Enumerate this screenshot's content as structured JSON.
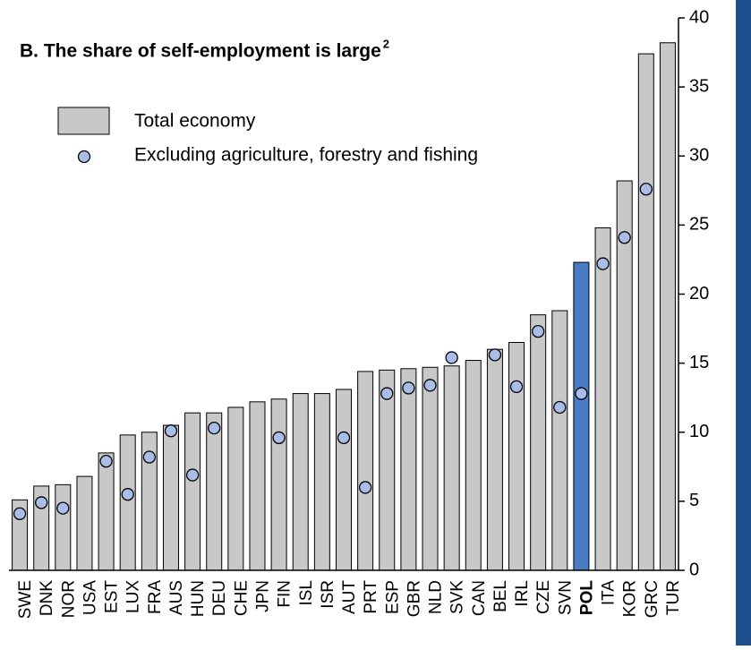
{
  "chart_data": {
    "type": "bar",
    "title": "B. The share of self-employment is large",
    "title_note": "2",
    "categories": [
      "SWE",
      "DNK",
      "NOR",
      "USA",
      "EST",
      "LUX",
      "FRA",
      "AUS",
      "HUN",
      "DEU",
      "CHE",
      "JPN",
      "FIN",
      "ISL",
      "ISR",
      "AUT",
      "PRT",
      "ESP",
      "GBR",
      "NLD",
      "SVK",
      "CAN",
      "BEL",
      "IRL",
      "CZE",
      "SVN",
      "POL",
      "ITA",
      "KOR",
      "GRC",
      "TUR"
    ],
    "series": [
      {
        "name": "Total economy",
        "type": "bar",
        "color": "#c8c8c8",
        "highlight": {
          "category": "POL",
          "color": "#4a7cc4"
        },
        "values": [
          5.1,
          6.1,
          6.2,
          6.8,
          8.5,
          9.8,
          10.0,
          10.5,
          11.4,
          11.4,
          11.8,
          12.2,
          12.4,
          12.8,
          12.8,
          13.1,
          14.4,
          14.5,
          14.6,
          14.7,
          14.8,
          15.2,
          16.0,
          16.5,
          18.5,
          18.8,
          22.3,
          24.8,
          28.2,
          37.4,
          38.2
        ]
      },
      {
        "name": "Excluding agriculture, forestry and fishing",
        "type": "dot",
        "color": "#a9bde8",
        "values": [
          4.1,
          4.9,
          4.5,
          null,
          7.9,
          5.5,
          8.2,
          10.1,
          6.9,
          10.3,
          null,
          null,
          9.6,
          null,
          null,
          9.6,
          6.0,
          12.8,
          13.2,
          13.4,
          15.4,
          null,
          15.6,
          13.3,
          17.3,
          11.8,
          12.8,
          22.2,
          24.1,
          27.6,
          null
        ]
      }
    ],
    "ylim": [
      0,
      40
    ],
    "yticks": [
      0,
      5,
      10,
      15,
      20,
      25,
      30,
      35,
      40
    ],
    "grid": false
  }
}
